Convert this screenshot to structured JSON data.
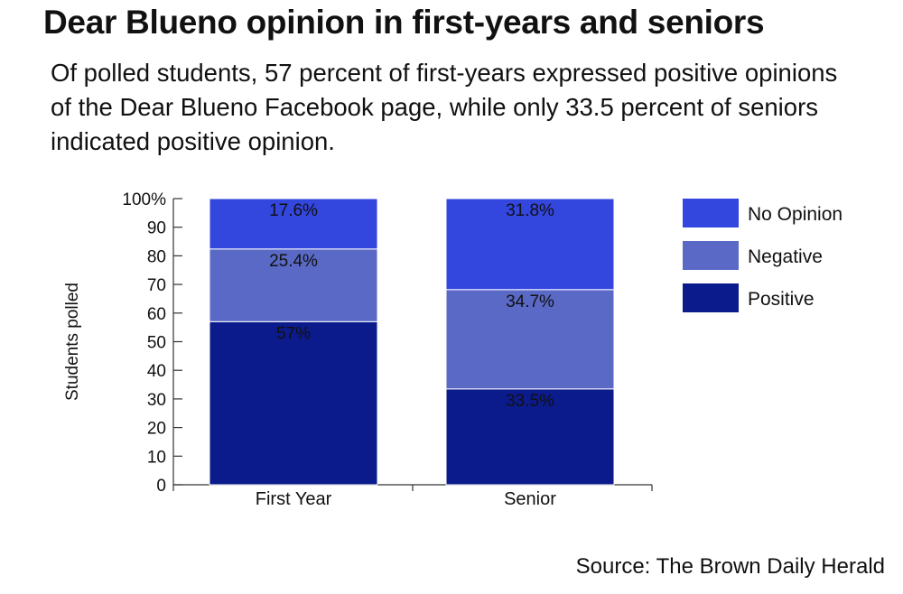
{
  "title": "Dear Blueno opinion in first-years and seniors",
  "subtitle": "Of polled students, 57 percent of first-years expressed positive opinions of the Dear Blueno Facebook page, while only 33.5 percent of seniors indicated positive opinion.",
  "source": "Source: The Brown Daily Herald",
  "colors": {
    "positive": "#0b1b8c",
    "negative": "#5a69c5",
    "no_opinion": "#3346de"
  },
  "chart_data": {
    "type": "bar",
    "stacked": true,
    "categories": [
      "First Year",
      "Senior"
    ],
    "series": [
      {
        "name": "Positive",
        "key": "positive",
        "values": [
          57,
          33.5
        ],
        "labels": [
          "57%",
          "33.5%"
        ]
      },
      {
        "name": "Negative",
        "key": "negative",
        "values": [
          25.4,
          34.7
        ],
        "labels": [
          "25.4%",
          "34.7%"
        ]
      },
      {
        "name": "No Opinion",
        "key": "no_opinion",
        "values": [
          17.6,
          31.8
        ],
        "labels": [
          "17.6%",
          "31.8%"
        ]
      }
    ],
    "legend_order": [
      "No Opinion",
      "Negative",
      "Positive"
    ],
    "ylabel": "Students polled",
    "xlabel": "",
    "ylim": [
      0,
      100
    ],
    "yticks": [
      "0",
      "10",
      "20",
      "30",
      "40",
      "50",
      "60",
      "70",
      "80",
      "90",
      "100%"
    ]
  }
}
